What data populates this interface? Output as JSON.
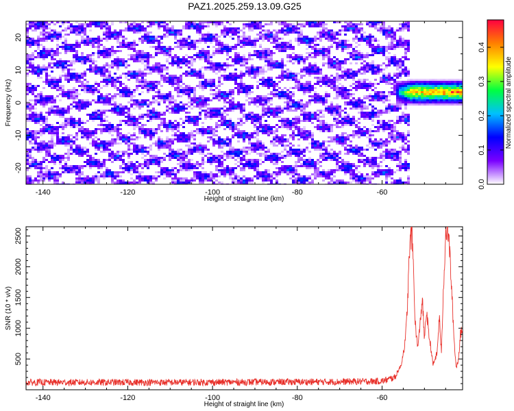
{
  "chart_data": [
    {
      "type": "heatmap",
      "title": "PAZ1.2025.259.13.09.G25",
      "xlabel": "Height of straight line (km)",
      "ylabel": "Frequency (Hz)",
      "xlim": [
        -144,
        -41
      ],
      "ylim": [
        -25,
        25
      ],
      "x_ticks": [
        -140,
        -120,
        -100,
        -80,
        -60
      ],
      "y_ticks": [
        -20,
        -10,
        0,
        10,
        20
      ],
      "colorbar": {
        "label": "Normalized spectral amplitude",
        "range": [
          0,
          0.48
        ],
        "ticks": [
          0.0,
          0.1,
          0.2,
          0.3,
          0.4
        ],
        "colors": [
          "#ffffff",
          "#7a00ff",
          "#0000ff",
          "#00c0ff",
          "#00ff40",
          "#ffff00",
          "#ff8000",
          "#ff0040"
        ]
      },
      "summary": {
        "background_noise_band": {
          "x_range": [
            -144,
            -54
          ],
          "frequency_range": [
            -25,
            25
          ],
          "amplitude_range": [
            0.0,
            0.12
          ]
        },
        "signal_band": {
          "x_range": [
            -57,
            -41
          ],
          "frequency_center": 3.5,
          "frequency_half_width": 2.5,
          "peak_amplitude": 0.48
        }
      }
    },
    {
      "type": "line",
      "xlabel": "Height of straight line (km)",
      "ylabel": "SNR (10 * v/v)",
      "xlim": [
        -144,
        -41
      ],
      "ylim": [
        0,
        2650
      ],
      "x_ticks": [
        -140,
        -120,
        -100,
        -80,
        -60
      ],
      "y_ticks": [
        500,
        1000,
        1500,
        2000,
        2500
      ],
      "series": [
        {
          "color": "#e8302a",
          "x": [
            -144,
            -130,
            -110,
            -90,
            -70,
            -60,
            -57,
            -55.5,
            -54.5,
            -54,
            -53.5,
            -53,
            -52.7,
            -52.3,
            -52,
            -51.5,
            -51,
            -50.5,
            -50,
            -49.5,
            -49,
            -48.5,
            -48,
            -47.5,
            -47,
            -46.5,
            -46,
            -45.5,
            -45,
            -44.5,
            -44,
            -43.5,
            -43,
            -42.5,
            -42,
            -41.5,
            -41
          ],
          "y": [
            120,
            120,
            120,
            125,
            130,
            140,
            200,
            400,
            800,
            1400,
            2300,
            2570,
            2200,
            1300,
            900,
            700,
            1100,
            1500,
            800,
            1300,
            900,
            700,
            400,
            500,
            600,
            1200,
            600,
            1700,
            2550,
            2650,
            2200,
            1500,
            800,
            350,
            500,
            900,
            1000
          ]
        }
      ]
    }
  ]
}
